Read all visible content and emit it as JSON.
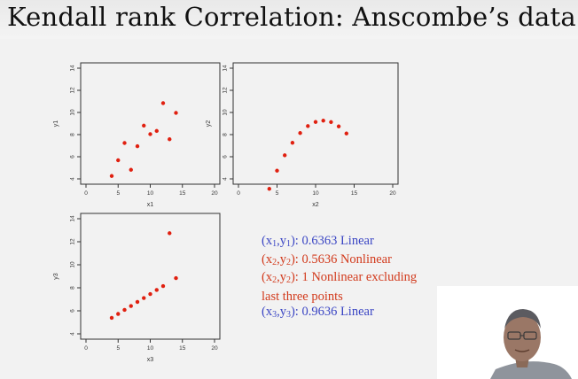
{
  "slide": {
    "title": "Kendall rank Correlation:  Anscombe’s data"
  },
  "annotations": [
    {
      "x_sym": "x",
      "x_sub": "1",
      "y_sym": "y",
      "y_sub": "1",
      "text": "): 0.6363 Linear",
      "text2": "",
      "color": "#3b46c4"
    },
    {
      "x_sym": "x",
      "x_sub": "2",
      "y_sym": "y",
      "y_sub": "2",
      "text": "): 0.5636 Nonlinear",
      "text2": "",
      "color": "#d23a1c"
    },
    {
      "x_sym": "x",
      "x_sub": "2",
      "y_sym": "y",
      "y_sub": "2",
      "text": "): 1 Nonlinear excluding",
      "text2": "last three points",
      "color": "#d23a1c"
    },
    {
      "x_sym": "x",
      "x_sub": "3",
      "y_sym": "y",
      "y_sub": "3",
      "text": "): 0.9636 Linear",
      "text2": "",
      "color": "#3b46c4"
    }
  ],
  "chart_data": [
    {
      "type": "scatter",
      "xlabel": "x1",
      "ylabel": "y1",
      "xlim": [
        0,
        20
      ],
      "ylim": [
        4,
        14
      ],
      "xticks": [
        0,
        5,
        10,
        15,
        20
      ],
      "yticks": [
        4,
        6,
        8,
        10,
        12,
        14
      ],
      "x": [
        10,
        8,
        13,
        9,
        11,
        14,
        6,
        4,
        12,
        7,
        5
      ],
      "y": [
        8.04,
        6.95,
        7.58,
        8.81,
        8.33,
        9.96,
        7.24,
        4.26,
        10.84,
        4.82,
        5.68
      ],
      "marker_color": "#e02010"
    },
    {
      "type": "scatter",
      "xlabel": "x2",
      "ylabel": "y2",
      "xlim": [
        0,
        20
      ],
      "ylim": [
        4,
        14
      ],
      "xticks": [
        0,
        5,
        10,
        15,
        20
      ],
      "yticks": [
        4,
        6,
        8,
        10,
        12,
        14
      ],
      "x": [
        10,
        8,
        13,
        9,
        11,
        14,
        6,
        4,
        12,
        7,
        5
      ],
      "y": [
        9.14,
        8.14,
        8.74,
        8.77,
        9.26,
        8.1,
        6.13,
        3.1,
        9.13,
        7.26,
        4.74
      ],
      "marker_color": "#e02010"
    },
    {
      "type": "scatter",
      "xlabel": "x3",
      "ylabel": "y3",
      "xlim": [
        0,
        20
      ],
      "ylim": [
        4,
        14
      ],
      "xticks": [
        0,
        5,
        10,
        15,
        20
      ],
      "yticks": [
        4,
        6,
        8,
        10,
        12,
        14
      ],
      "x": [
        10,
        8,
        13,
        9,
        11,
        14,
        6,
        4,
        12,
        7,
        5
      ],
      "y": [
        7.46,
        6.77,
        12.74,
        7.11,
        7.81,
        8.84,
        6.08,
        5.39,
        8.15,
        6.42,
        5.73
      ],
      "marker_color": "#e02010"
    }
  ]
}
